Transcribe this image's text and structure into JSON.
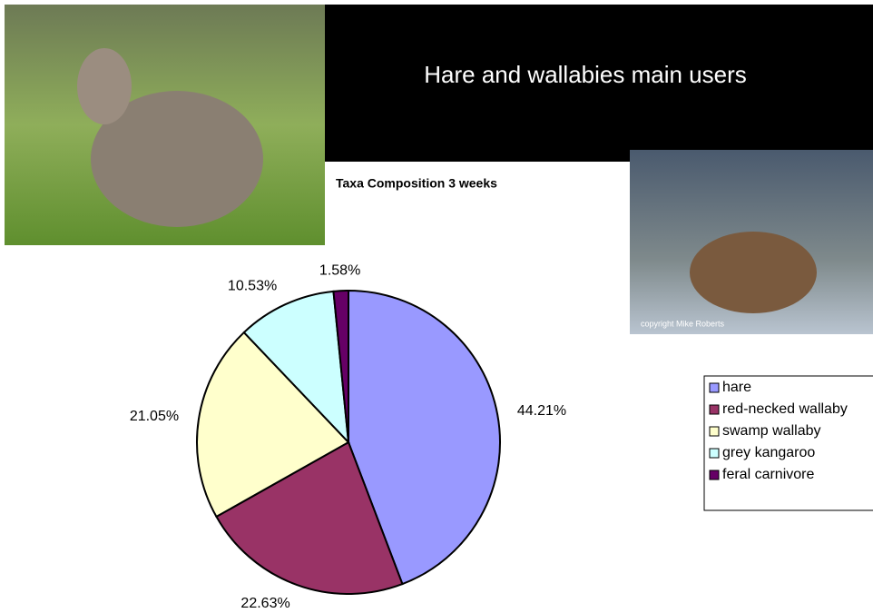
{
  "slide_title": "Hare and wallabies main users",
  "photo_credit": "copyright Mike Roberts",
  "chart_data": {
    "type": "pie",
    "title": "Taxa Composition 3 weeks",
    "categories": [
      "hare",
      "red-necked wallaby",
      "swamp wallaby",
      "grey kangaroo",
      "feral carnivore"
    ],
    "values": [
      44.21,
      22.63,
      21.05,
      10.53,
      1.58
    ],
    "value_labels": [
      "44.21%",
      "22.63%",
      "21.05%",
      "10.53%",
      "1.58%"
    ],
    "colors": [
      "#9999ff",
      "#993366",
      "#ffffcc",
      "#ccffff",
      "#660066"
    ],
    "legend": "right"
  }
}
